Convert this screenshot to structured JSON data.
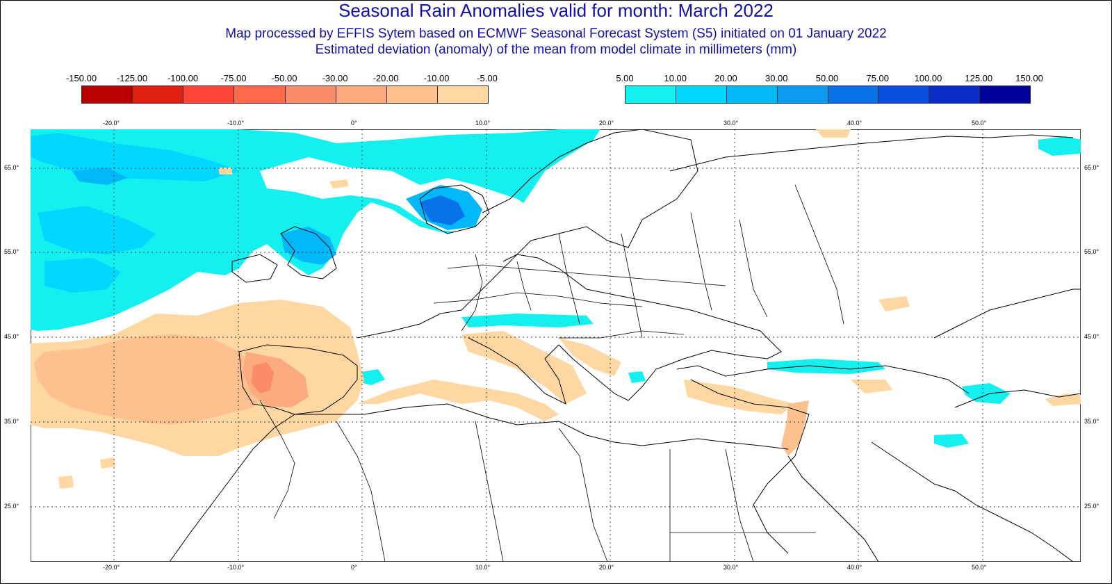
{
  "title": "Seasonal Rain Anomalies valid for month: March 2022",
  "subtitle_1": "Map processed by EFFIS Sytem based on ECMWF Seasonal Forecast System (S5) initiated on 01 January 2022",
  "subtitle_2": "Estimated deviation (anomaly) of the mean from model climate in millimeters (mm)",
  "legend_negative": {
    "labels": [
      "-150.00",
      "-125.00",
      "-100.00",
      "-75.00",
      "-50.00",
      "-30.00",
      "-20.00",
      "-10.00",
      "-5.00"
    ],
    "colors": [
      "#b80000",
      "#df2010",
      "#ff4535",
      "#ff6a4a",
      "#fa8c6c",
      "#fcaa7f",
      "#fdc08f",
      "#fed7a3"
    ]
  },
  "legend_positive": {
    "labels": [
      "5.00",
      "10.00",
      "20.00",
      "30.00",
      "50.00",
      "75.00",
      "100.00",
      "125.00",
      "150.00"
    ],
    "colors": [
      "#14f0f0",
      "#00d8ff",
      "#00b8f8",
      "#0a9af0",
      "#0a72e8",
      "#0a50e0",
      "#0a2cc8",
      "#00009a"
    ]
  },
  "lon_labels": [
    "-20.0°",
    "-10.0°",
    "0°",
    "10.0°",
    "20.0°",
    "30.0°",
    "40.0°",
    "50.0°"
  ],
  "lat_labels": [
    "65.0°",
    "55.0°",
    "45.0°",
    "35.0°",
    "25.0°"
  ],
  "colors": {
    "title": "#1111aa",
    "land_outline": "#000000",
    "grid": "#000000"
  }
}
